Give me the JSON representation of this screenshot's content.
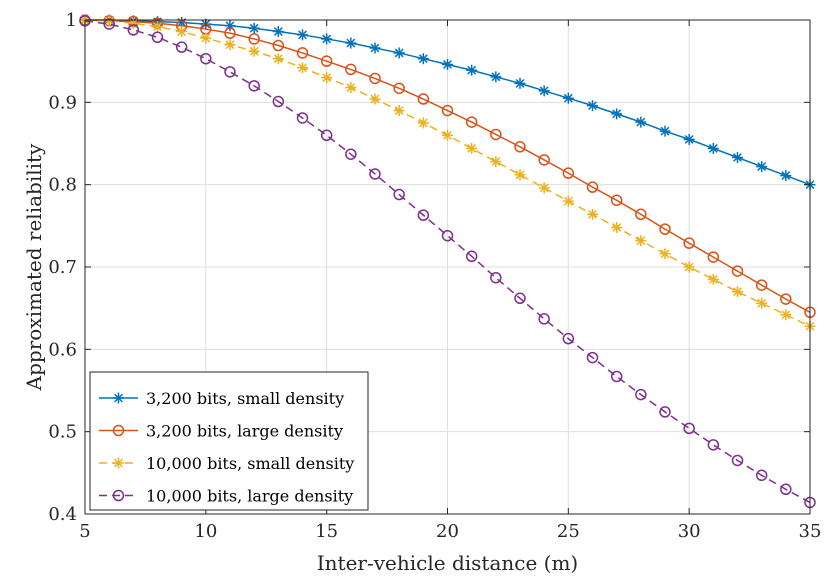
{
  "chart_data": {
    "type": "line",
    "title": "",
    "xlabel": "Inter-vehicle distance (m)",
    "ylabel": "Approximated reliability",
    "xlim": [
      5,
      35
    ],
    "ylim": [
      0.4,
      1
    ],
    "xticks": [
      5,
      10,
      15,
      20,
      25,
      30,
      35
    ],
    "yticks": [
      0.4,
      0.5,
      0.6,
      0.7,
      0.8,
      0.9,
      1
    ],
    "grid": true,
    "legend_position": "bottom-left",
    "x": [
      5,
      6,
      7,
      8,
      9,
      10,
      11,
      12,
      13,
      14,
      15,
      16,
      17,
      18,
      19,
      20,
      21,
      22,
      23,
      24,
      25,
      26,
      27,
      28,
      29,
      30,
      31,
      32,
      33,
      34,
      35
    ],
    "series": [
      {
        "name": "3,200 bits, small density",
        "color": "#0072BD",
        "marker": "asterisk",
        "line_style": "solid",
        "values": [
          1.0,
          1.0,
          0.999,
          0.998,
          0.997,
          0.995,
          0.993,
          0.99,
          0.986,
          0.982,
          0.977,
          0.972,
          0.966,
          0.96,
          0.953,
          0.946,
          0.939,
          0.931,
          0.923,
          0.914,
          0.905,
          0.896,
          0.886,
          0.876,
          0.865,
          0.855,
          0.844,
          0.833,
          0.822,
          0.811,
          0.8
        ]
      },
      {
        "name": "3,200 bits, large density",
        "color": "#D95319",
        "marker": "circle",
        "line_style": "solid",
        "values": [
          1.0,
          0.999,
          0.998,
          0.996,
          0.993,
          0.989,
          0.984,
          0.977,
          0.969,
          0.96,
          0.95,
          0.94,
          0.929,
          0.917,
          0.904,
          0.89,
          0.876,
          0.861,
          0.846,
          0.83,
          0.814,
          0.797,
          0.781,
          0.764,
          0.746,
          0.729,
          0.712,
          0.695,
          0.678,
          0.661,
          0.645
        ]
      },
      {
        "name": "10,000 bits, small density",
        "color": "#EDB120",
        "marker": "asterisk",
        "line_style": "dashed",
        "values": [
          1.0,
          0.999,
          0.996,
          0.992,
          0.986,
          0.978,
          0.97,
          0.962,
          0.953,
          0.942,
          0.93,
          0.918,
          0.904,
          0.89,
          0.875,
          0.86,
          0.844,
          0.828,
          0.812,
          0.796,
          0.78,
          0.764,
          0.748,
          0.732,
          0.716,
          0.7,
          0.685,
          0.67,
          0.656,
          0.642,
          0.628
        ]
      },
      {
        "name": "10,000 bits, large density",
        "color": "#7E2F8E",
        "marker": "circle",
        "line_style": "dashed",
        "values": [
          0.999,
          0.995,
          0.988,
          0.979,
          0.967,
          0.953,
          0.937,
          0.92,
          0.901,
          0.881,
          0.86,
          0.837,
          0.813,
          0.788,
          0.763,
          0.738,
          0.713,
          0.687,
          0.662,
          0.637,
          0.613,
          0.59,
          0.567,
          0.545,
          0.524,
          0.504,
          0.484,
          0.465,
          0.447,
          0.43,
          0.414
        ]
      }
    ]
  }
}
